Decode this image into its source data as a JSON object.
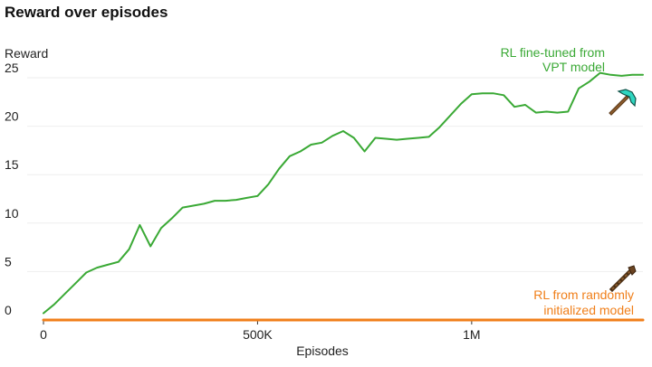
{
  "chart_data": {
    "type": "line",
    "title": "Reward over episodes",
    "xlabel": "Episodes",
    "ylabel": "Reward",
    "xlim": [
      0,
      1400000
    ],
    "ylim": [
      0,
      25
    ],
    "x_ticks": [
      0,
      500000,
      1000000
    ],
    "x_tick_labels": [
      "0",
      "500K",
      "1M"
    ],
    "y_ticks": [
      0,
      5,
      10,
      15,
      20,
      25
    ],
    "y_tick_labels": [
      "0",
      "5",
      "10",
      "15",
      "20",
      "25"
    ],
    "grid": true,
    "series": [
      {
        "name": "RL fine-tuned from VPT model",
        "label_lines": [
          "RL fine-tuned from",
          "VPT model"
        ],
        "color": "#3aa935",
        "icon": "diamond-pickaxe-icon",
        "x": [
          0,
          25000,
          50000,
          75000,
          100000,
          125000,
          150000,
          175000,
          200000,
          225000,
          250000,
          275000,
          300000,
          325000,
          350000,
          375000,
          400000,
          425000,
          450000,
          475000,
          500000,
          525000,
          550000,
          575000,
          600000,
          625000,
          650000,
          675000,
          700000,
          725000,
          750000,
          775000,
          800000,
          825000,
          850000,
          875000,
          900000,
          925000,
          950000,
          975000,
          1000000,
          1025000,
          1050000,
          1075000,
          1100000,
          1125000,
          1150000,
          1175000,
          1200000,
          1225000,
          1250000,
          1275000,
          1300000,
          1325000,
          1350000,
          1375000,
          1400000
        ],
        "values": [
          0.7,
          1.6,
          2.7,
          3.8,
          4.9,
          5.4,
          5.7,
          6.0,
          7.3,
          9.8,
          7.6,
          9.5,
          10.5,
          11.6,
          11.8,
          12.0,
          12.3,
          12.3,
          12.4,
          12.6,
          12.8,
          14.0,
          15.6,
          16.9,
          17.4,
          18.1,
          18.3,
          19.0,
          19.5,
          18.8,
          17.4,
          18.8,
          18.7,
          18.6,
          18.7,
          18.8,
          18.9,
          19.9,
          21.1,
          22.3,
          23.3,
          23.4,
          23.4,
          23.2,
          22.0,
          22.2,
          21.4,
          21.5,
          21.4,
          21.5,
          23.9,
          24.6,
          25.5,
          25.3,
          25.2,
          25.3,
          25.3
        ]
      },
      {
        "name": "RL from randomly initialized model",
        "label_lines": [
          "RL from randomly",
          "initialized model"
        ],
        "color": "#f07f1a",
        "icon": "wooden-pickaxe-icon",
        "x": [
          0,
          1400000
        ],
        "values": [
          0,
          0
        ]
      }
    ]
  }
}
